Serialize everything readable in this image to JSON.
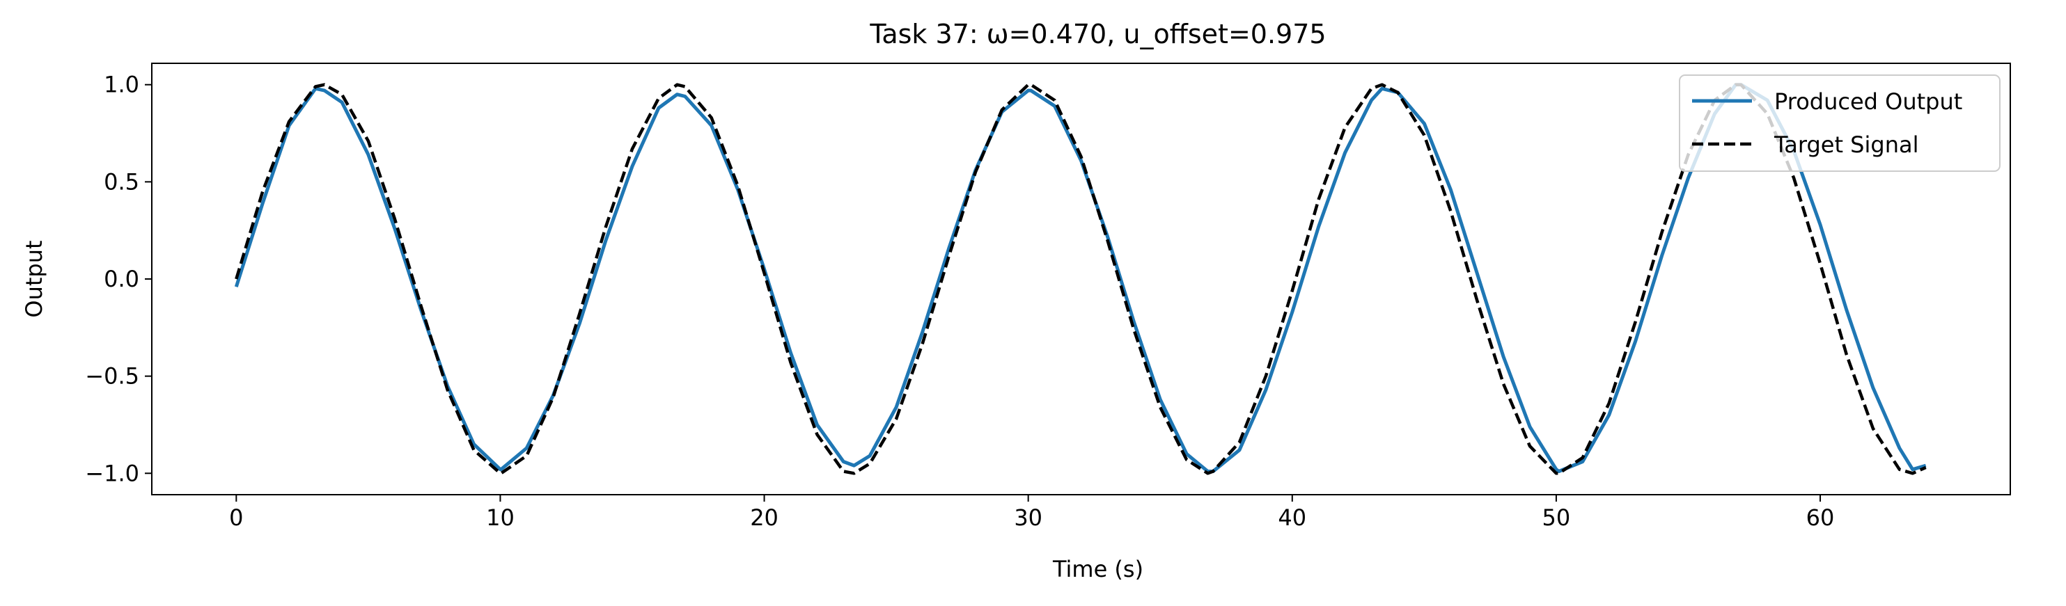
{
  "chart_data": {
    "type": "line",
    "title": "Task 37: ω=0.470, u_offset=0.975",
    "xlabel": "Time (s)",
    "ylabel": "Output",
    "xlim": [
      -3.2,
      67.2
    ],
    "ylim": [
      -1.11,
      1.11
    ],
    "xticks": [
      0,
      10,
      20,
      30,
      40,
      50,
      60
    ],
    "yticks": [
      -1.0,
      -0.5,
      0.0,
      0.5,
      1.0
    ],
    "xtick_labels": [
      "0",
      "10",
      "20",
      "30",
      "40",
      "50",
      "60"
    ],
    "ytick_labels": [
      "−1.0",
      "−0.5",
      "0.0",
      "0.5",
      "1.0"
    ],
    "grid": false,
    "legend_position": "upper right",
    "series": [
      {
        "name": "Produced Output",
        "color": "#1f77b4",
        "style": "solid",
        "x": [
          0,
          1,
          2,
          3,
          3.34,
          4,
          5,
          6,
          7,
          8,
          9,
          10,
          10.03,
          11,
          12,
          13,
          14,
          15,
          16,
          16.7,
          17,
          18,
          19,
          20,
          21,
          22,
          23,
          23.4,
          24,
          25,
          26,
          27,
          28,
          29,
          30,
          30.1,
          31,
          32,
          33,
          34,
          35,
          36,
          36.8,
          37,
          38,
          39,
          40,
          41,
          42,
          43,
          43.4,
          44,
          45,
          46,
          47,
          48,
          49,
          50,
          50.1,
          51,
          52,
          53,
          54,
          55,
          56,
          56.8,
          57,
          58,
          59,
          60,
          61,
          62,
          63,
          63.5,
          64
        ],
        "y": [
          -0.04,
          0.39,
          0.79,
          0.98,
          0.97,
          0.91,
          0.64,
          0.26,
          -0.16,
          -0.55,
          -0.85,
          -0.98,
          -0.98,
          -0.87,
          -0.6,
          -0.23,
          0.2,
          0.58,
          0.88,
          0.95,
          0.94,
          0.79,
          0.46,
          0.05,
          -0.38,
          -0.75,
          -0.94,
          -0.96,
          -0.91,
          -0.66,
          -0.27,
          0.16,
          0.56,
          0.86,
          0.97,
          0.97,
          0.89,
          0.61,
          0.22,
          -0.22,
          -0.62,
          -0.9,
          -0.99,
          -0.99,
          -0.88,
          -0.57,
          -0.17,
          0.27,
          0.65,
          0.92,
          0.98,
          0.96,
          0.8,
          0.46,
          0.03,
          -0.4,
          -0.76,
          -0.98,
          -0.99,
          -0.94,
          -0.7,
          -0.32,
          0.12,
          0.52,
          0.85,
          1.0,
          1.0,
          0.92,
          0.66,
          0.28,
          -0.16,
          -0.56,
          -0.87,
          -0.98,
          -0.96
        ]
      },
      {
        "name": "Target Signal",
        "color": "#000000",
        "style": "dashed",
        "x": [
          0,
          1,
          2,
          3,
          3.34,
          4,
          5,
          6,
          7,
          8,
          9,
          10,
          10.03,
          11,
          12,
          13,
          14,
          15,
          16,
          16.7,
          17,
          18,
          19,
          20,
          21,
          22,
          23,
          23.4,
          24,
          25,
          26,
          27,
          28,
          29,
          30,
          30.1,
          31,
          32,
          33,
          34,
          35,
          36,
          36.8,
          37,
          38,
          39,
          40,
          41,
          42,
          43,
          43.4,
          44,
          45,
          46,
          47,
          48,
          49,
          50,
          50.1,
          51,
          52,
          53,
          54,
          55,
          56,
          56.8,
          57,
          58,
          59,
          60,
          61,
          62,
          63,
          63.5,
          64
        ],
        "y": [
          0.0,
          0.45,
          0.81,
          0.99,
          1.0,
          0.95,
          0.71,
          0.31,
          -0.14,
          -0.57,
          -0.88,
          -1.0,
          -1.0,
          -0.91,
          -0.61,
          -0.18,
          0.27,
          0.67,
          0.93,
          1.0,
          0.99,
          0.83,
          0.48,
          0.03,
          -0.43,
          -0.8,
          -0.99,
          -1.0,
          -0.95,
          -0.72,
          -0.33,
          0.12,
          0.55,
          0.87,
          1.0,
          1.0,
          0.92,
          0.63,
          0.2,
          -0.26,
          -0.66,
          -0.93,
          -1.0,
          -0.99,
          -0.84,
          -0.5,
          -0.06,
          0.41,
          0.78,
          0.98,
          1.0,
          0.96,
          0.74,
          0.35,
          -0.11,
          -0.54,
          -0.86,
          -1.0,
          -1.0,
          -0.92,
          -0.64,
          -0.22,
          0.24,
          0.64,
          0.92,
          1.0,
          1.0,
          0.85,
          0.52,
          0.08,
          -0.39,
          -0.77,
          -0.98,
          -1.0,
          -0.97
        ]
      }
    ]
  }
}
